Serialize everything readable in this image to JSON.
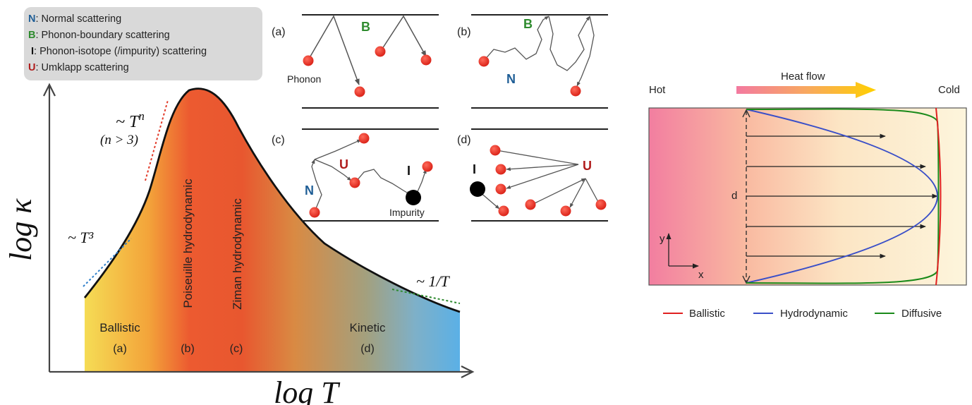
{
  "left_figure": {
    "legend": {
      "items": [
        {
          "key": "N",
          "text": ": Normal scattering",
          "color": "#1f5e96"
        },
        {
          "key": "B",
          "text": ": Phonon-boundary scattering",
          "color": "#2e8b2e"
        },
        {
          "key": "I",
          "text": ": Phonon-isotope (/impurity) scattering",
          "color": "#111111"
        },
        {
          "key": "U",
          "text": ": Umklapp scattering",
          "color": "#b01c1c"
        }
      ]
    },
    "y_axis_label": "log κ",
    "x_axis_label": "log T",
    "slope_labels": {
      "t3": "~ T³",
      "tn": "~ T",
      "tn_sup": "n",
      "tn_cond": "(n > 3)",
      "inv_t": "~ 1/T"
    },
    "regimes": [
      {
        "name": "Ballistic",
        "case": "(a)"
      },
      {
        "name": "Poiseuille hydrodynamic",
        "case": "(b)"
      },
      {
        "name": "Ziman hydrodynamic",
        "case": "(c)"
      },
      {
        "name": "Kinetic",
        "case": "(d)"
      }
    ],
    "panels": {
      "a": {
        "label": "(a)",
        "letter": "B",
        "note": "Phonon"
      },
      "b": {
        "label": "(b)",
        "letter_top": "B",
        "letter_mid": "N"
      },
      "c": {
        "label": "(c)",
        "letter_u": "U",
        "letter_n": "N",
        "letter_i": "I",
        "note": "Impurity"
      },
      "d": {
        "label": "(d)",
        "letter_i": "I",
        "letter_u": "U"
      }
    },
    "colors": {
      "phonon": "#e3261d",
      "impurity": "#000000",
      "N": "#1f5e96",
      "B": "#2e8b2e",
      "U": "#b01c1c"
    }
  },
  "right_figure": {
    "hot_label": "Hot",
    "cold_label": "Cold",
    "heat_flow_label": "Heat flow",
    "width_label": "d",
    "axis_y": "y",
    "axis_x": "x",
    "legend": [
      {
        "name": "Ballistic",
        "color": "#e02020"
      },
      {
        "name": "Hydrodynamic",
        "color": "#3a4fc8"
      },
      {
        "name": "Diffusive",
        "color": "#1a8a1a"
      }
    ]
  }
}
